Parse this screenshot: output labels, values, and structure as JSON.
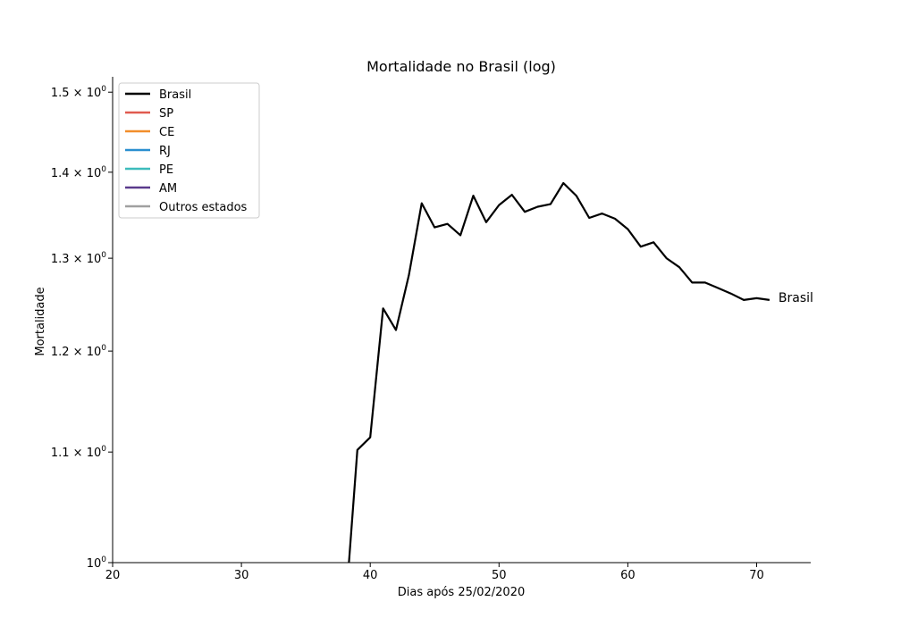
{
  "chart_data": {
    "type": "line",
    "title": "Mortalidade no Brasil (log)",
    "xlabel": "Dias após 25/02/2020",
    "ylabel": "Mortalidade",
    "xlim": [
      20,
      74.2
    ],
    "ylim": [
      1.0,
      1.52
    ],
    "yscale": "log",
    "x_ticks": [
      20,
      30,
      40,
      50,
      60,
      70
    ],
    "y_ticks": [
      {
        "value": 1.0,
        "mantissa": "",
        "exp": "0",
        "base": "10"
      },
      {
        "value": 1.1,
        "mantissa": "1.1",
        "exp": "0",
        "base": "10"
      },
      {
        "value": 1.2,
        "mantissa": "1.2",
        "exp": "0",
        "base": "10"
      },
      {
        "value": 1.3,
        "mantissa": "1.3",
        "exp": "0",
        "base": "10"
      },
      {
        "value": 1.4,
        "mantissa": "1.4",
        "exp": "0",
        "base": "10"
      },
      {
        "value": 1.5,
        "mantissa": "1.5",
        "exp": "0",
        "base": "10"
      }
    ],
    "legend_position": "top-left",
    "grid": false,
    "series": [
      {
        "name": "Brasil",
        "color": "#000000",
        "end_label": "Brasil",
        "points": [
          [
            38,
            0.95
          ],
          [
            39,
            1.102
          ],
          [
            40,
            1.114
          ],
          [
            41,
            1.245
          ],
          [
            42,
            1.222
          ],
          [
            43,
            1.281
          ],
          [
            44,
            1.363
          ],
          [
            45,
            1.335
          ],
          [
            46,
            1.339
          ],
          [
            47,
            1.326
          ],
          [
            48,
            1.372
          ],
          [
            49,
            1.341
          ],
          [
            50,
            1.361
          ],
          [
            51,
            1.373
          ],
          [
            52,
            1.353
          ],
          [
            53,
            1.359
          ],
          [
            54,
            1.362
          ],
          [
            55,
            1.387
          ],
          [
            56,
            1.372
          ],
          [
            57,
            1.346
          ],
          [
            58,
            1.351
          ],
          [
            59,
            1.345
          ],
          [
            60,
            1.333
          ],
          [
            61,
            1.313
          ],
          [
            62,
            1.318
          ],
          [
            63,
            1.3
          ],
          [
            64,
            1.29
          ],
          [
            65,
            1.273
          ],
          [
            66,
            1.273
          ],
          [
            67,
            1.267
          ],
          [
            68,
            1.261
          ],
          [
            69,
            1.254
          ],
          [
            70,
            1.256
          ],
          [
            71,
            1.254
          ]
        ]
      },
      {
        "name": "SP",
        "color": "#e05a4f",
        "points": []
      },
      {
        "name": "CE",
        "color": "#f28e2b",
        "points": []
      },
      {
        "name": "RJ",
        "color": "#2a8fd0",
        "points": []
      },
      {
        "name": "PE",
        "color": "#3dbcbc",
        "points": []
      },
      {
        "name": "AM",
        "color": "#5a3a8c",
        "points": []
      },
      {
        "name": "Outros estados",
        "color": "#a0a0a0",
        "points": []
      }
    ]
  }
}
